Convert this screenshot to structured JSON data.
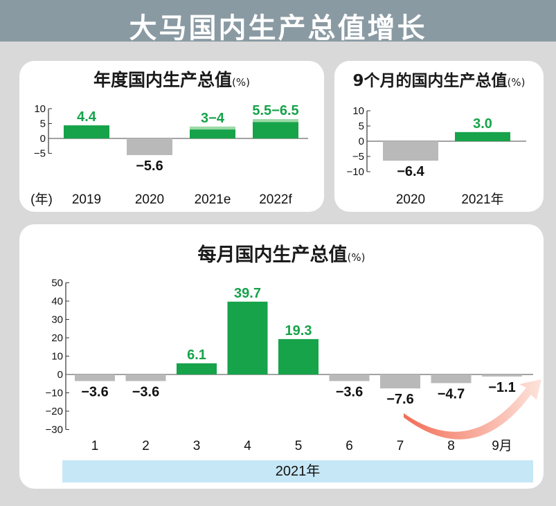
{
  "banner": {
    "title": "大马国内生产总值增长"
  },
  "colors": {
    "positive": "#16a34a",
    "negative": "#b9b9b9",
    "forecast_band": "#9bd9a8",
    "arrow": "#f07a62"
  },
  "panels": {
    "annual": {
      "title": "年度国内生产总值",
      "unit": "(%)",
      "year_marker": "(年)"
    },
    "nine_month": {
      "title": "9个月的国内生产总值",
      "unit": "(%)"
    },
    "monthly": {
      "title": "每月国内生产总值",
      "unit": "(%)",
      "year_label": "2021年"
    }
  },
  "chart_data": [
    {
      "id": "annual",
      "type": "bar",
      "title": "年度国内生产总值(%)",
      "categories": [
        "2019",
        "2020",
        "2021e",
        "2022f"
      ],
      "values": [
        4.4,
        -5.6,
        3.5,
        6.0
      ],
      "ranges": [
        null,
        null,
        [
          3,
          4
        ],
        [
          5.5,
          6.5
        ]
      ],
      "labels": [
        "4.4",
        "−5.6",
        "3−4",
        "5.5−6.5"
      ],
      "yticks": [
        "10",
        "5",
        "0",
        "−5"
      ],
      "ytick_values": [
        10,
        5,
        0,
        -5
      ],
      "ylim": [
        -7,
        10
      ]
    },
    {
      "id": "nine_month",
      "type": "bar",
      "title": "9个月的国内生产总值(%)",
      "categories": [
        "2020",
        "2021年"
      ],
      "values": [
        -6.4,
        3.0
      ],
      "labels": [
        "−6.4",
        "3.0"
      ],
      "yticks": [
        "10",
        "5",
        "0",
        "−5",
        "−10"
      ],
      "ytick_values": [
        10,
        5,
        0,
        -5,
        -10
      ],
      "ylim": [
        -10,
        10
      ]
    },
    {
      "id": "monthly",
      "type": "bar",
      "title": "每月国内生产总值(%)",
      "categories": [
        "1",
        "2",
        "3",
        "4",
        "5",
        "6",
        "7",
        "8",
        "9月"
      ],
      "values": [
        -3.6,
        -3.6,
        6.1,
        39.7,
        19.3,
        -3.6,
        -7.6,
        -4.7,
        -1.1
      ],
      "labels": [
        "−3.6",
        "−3.6",
        "6.1",
        "39.7",
        "19.3",
        "−3.6",
        "−7.6",
        "−4.7",
        "−1.1"
      ],
      "yticks": [
        "50",
        "40",
        "30",
        "20",
        "10",
        "0",
        "−10",
        "−20",
        "−30"
      ],
      "ytick_values": [
        50,
        40,
        30,
        20,
        10,
        0,
        -10,
        -20,
        -30
      ],
      "ylim": [
        -30,
        50
      ],
      "xlabel": "2021年"
    }
  ]
}
